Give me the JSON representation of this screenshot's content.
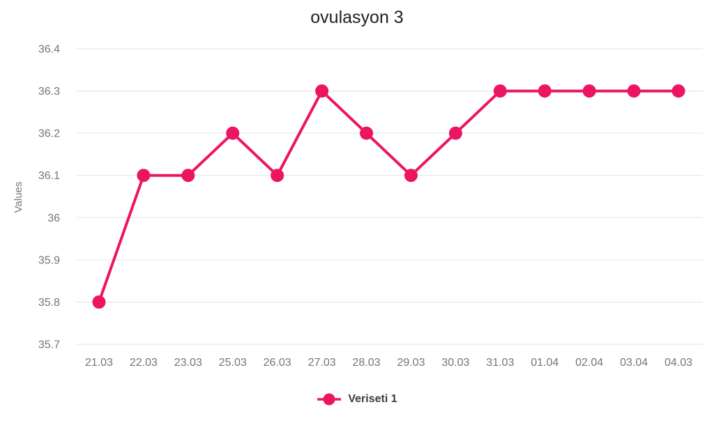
{
  "chart_data": {
    "type": "line",
    "title": "ovulasyon 3",
    "xlabel": "",
    "ylabel": "Values",
    "categories": [
      "21.03",
      "22.03",
      "23.03",
      "25.03",
      "26.03",
      "27.03",
      "28.03",
      "29.03",
      "30.03",
      "31.03",
      "01.04",
      "02.04",
      "03.04",
      "04.03"
    ],
    "series": [
      {
        "name": "Veriseti 1",
        "values": [
          35.8,
          36.1,
          36.1,
          36.2,
          36.1,
          36.3,
          36.2,
          36.1,
          36.2,
          36.3,
          36.3,
          36.3,
          36.3,
          36.3
        ]
      }
    ],
    "ylim": [
      35.7,
      36.4
    ],
    "ytick_step": 0.1,
    "yticks": [
      "36.4",
      "36.3",
      "36.2",
      "36.1",
      "36",
      "35.9",
      "35.8",
      "35.7"
    ],
    "grid": "horizontal",
    "legend_position": "bottom",
    "colors": {
      "line": "#EC1562",
      "point": "#EC1562",
      "grid": "#E8E8E8",
      "tick_text": "#757575",
      "axis_title_text": "#757575",
      "title_text": "#212121",
      "legend_text": "#3C3C3C",
      "background": "#FFFFFF"
    }
  }
}
